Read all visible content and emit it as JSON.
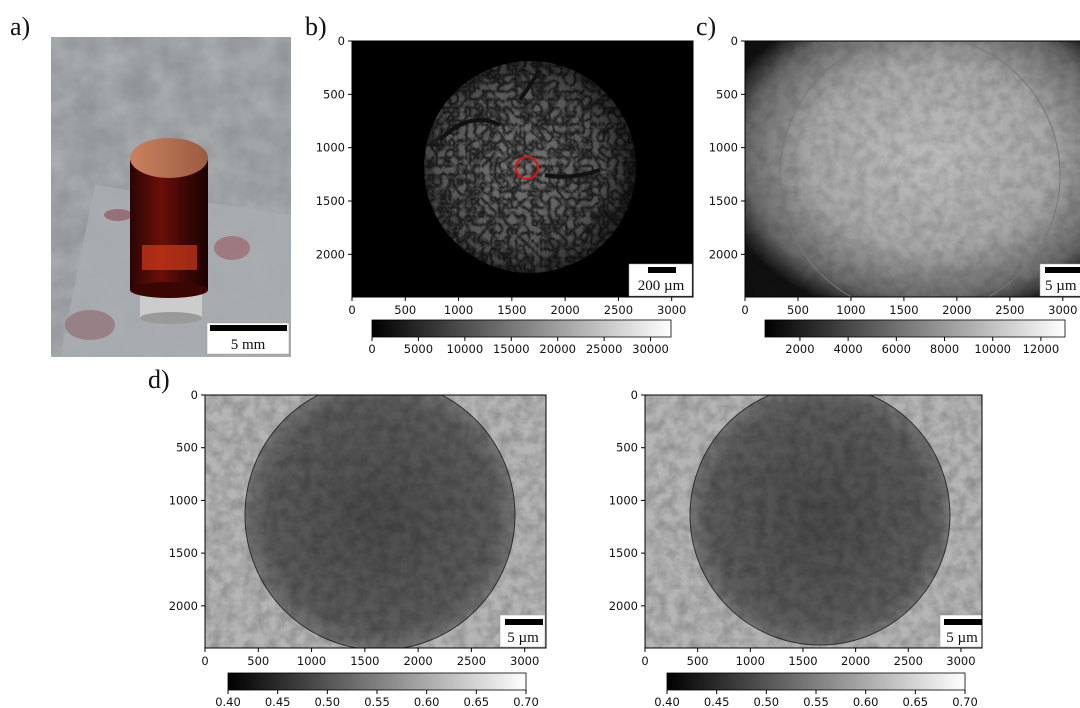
{
  "panels": [
    {
      "label": "a)",
      "scalebar": "5 mm"
    },
    {
      "label": "b)",
      "xlim": [
        0,
        3200
      ],
      "ylim": [
        0,
        2400
      ],
      "xticks": [
        0,
        500,
        1000,
        1500,
        2000,
        2500,
        3000
      ],
      "yticks": [
        0,
        500,
        1000,
        1500,
        2000
      ],
      "colorbar": {
        "lim": [
          0,
          32200
        ],
        "ticks": [
          0,
          5000,
          10000,
          15000,
          20000,
          25000,
          30000
        ]
      },
      "scalebar": "200 µm"
    },
    {
      "label": "c)",
      "xlim": [
        0,
        3200
      ],
      "ylim": [
        0,
        2400
      ],
      "xticks": [
        0,
        500,
        1000,
        1500,
        2000,
        2500,
        3000
      ],
      "yticks": [
        0,
        500,
        1000,
        1500,
        2000
      ],
      "colorbar": {
        "lim": [
          550,
          13000
        ],
        "ticks": [
          2000,
          4000,
          6000,
          8000,
          10000,
          12000
        ]
      },
      "scalebar": "5 µm"
    },
    {
      "label": "d)",
      "xlim": [
        0,
        3200
      ],
      "ylim": [
        0,
        2400
      ],
      "xticks": [
        0,
        500,
        1000,
        1500,
        2000,
        2500,
        3000
      ],
      "yticks": [
        0,
        500,
        1000,
        1500,
        2000
      ],
      "colorbar": {
        "lim": [
          0.4,
          0.7
        ],
        "ticks": [
          {
            "value": 0.4,
            "label": "0.40"
          },
          0.45,
          {
            "value": 0.5,
            "label": "0.50"
          },
          0.55,
          {
            "value": 0.6,
            "label": "0.60"
          },
          0.65,
          {
            "value": 0.7,
            "label": "0.70"
          }
        ]
      },
      "scalebar": "5 µm"
    },
    {
      "xlim": [
        0,
        3200
      ],
      "ylim": [
        0,
        2400
      ],
      "xticks": [
        0,
        500,
        1000,
        1500,
        2000,
        2500,
        3000
      ],
      "yticks": [
        0,
        500,
        1000,
        1500,
        2000
      ],
      "colorbar": {
        "lim": [
          0.4,
          0.7
        ],
        "ticks": [
          {
            "value": 0.4,
            "label": "0.40"
          },
          0.45,
          {
            "value": 0.5,
            "label": "0.50"
          },
          0.55,
          {
            "value": 0.6,
            "label": "0.60"
          },
          0.65,
          {
            "value": 0.7,
            "label": "0.70"
          }
        ]
      },
      "scalebar": "5 µm"
    }
  ]
}
